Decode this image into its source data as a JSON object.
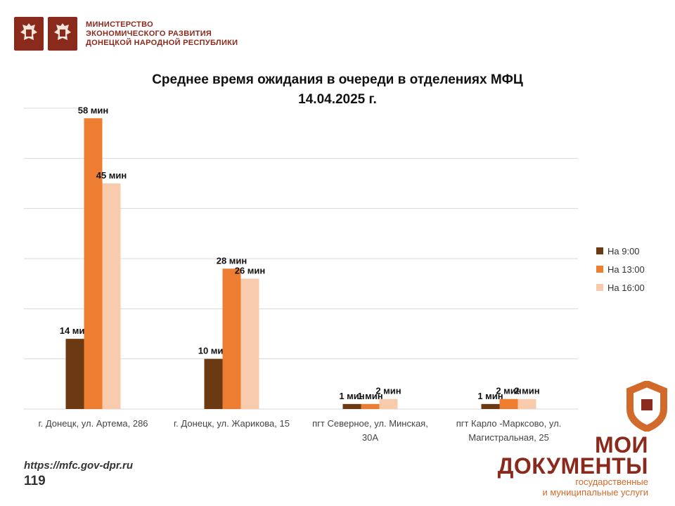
{
  "header": {
    "ministry_line1": "МИНИСТЕРСТВО",
    "ministry_line2": "ЭКОНОМИЧЕСКОГО РАЗВИТИЯ",
    "ministry_line3": "ДОНЕЦКОЙ НАРОДНОЙ РЕСПУБЛИКИ",
    "emblem_icons": [
      "coat-of-arms-icon",
      "coat-of-arms-icon"
    ]
  },
  "chart_data": {
    "type": "bar",
    "title": "Среднее время ожидания в очереди в отделениях МФЦ",
    "subtitle": "14.04.2025 г.",
    "categories": [
      [
        "г. Донецк, ул. Артема, 286"
      ],
      [
        "г. Донецк, ул. Жарикова, 15"
      ],
      [
        "пгт Северное, ул. Минская,",
        "30А"
      ],
      [
        "пгт Карло -Марксово, ул.",
        "Магистральная, 25"
      ]
    ],
    "series": [
      {
        "name": "На 9:00",
        "color": "#6b3a12",
        "values": [
          14,
          10,
          1,
          1
        ],
        "labels": [
          "14 мин",
          "10 мин",
          "1 мин",
          "1 мин"
        ]
      },
      {
        "name": "На 13:00",
        "color": "#ed7d31",
        "values": [
          58,
          28,
          1,
          2
        ],
        "labels": [
          "58 мин",
          "28 мин",
          "1 мин",
          "2 мин"
        ]
      },
      {
        "name": "На 16:00",
        "color": "#f7cbac",
        "values": [
          45,
          26,
          2,
          2
        ],
        "labels": [
          "45 мин",
          "26 мин",
          "2 мин",
          "2 мин"
        ]
      }
    ],
    "ylim": [
      0,
      60
    ],
    "grid": true,
    "legend": "right"
  },
  "footer": {
    "url": "https://mfc.gov-dpr.ru",
    "page_number": "119"
  },
  "brand": {
    "line1": "МОИ",
    "line2": "ДОКУМЕНТЫ",
    "sub1": "государственные",
    "sub2": "и муниципальные услуги",
    "logo_icon": "moi-dokumenty-logo-icon",
    "color_dark": "#8a2a1c",
    "color_orange": "#d26a2c"
  }
}
